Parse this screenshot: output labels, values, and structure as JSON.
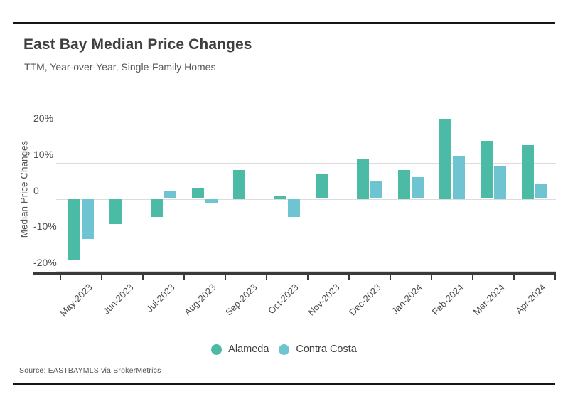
{
  "header": {
    "title": "East Bay Median Price Changes",
    "subtitle": "TTM, Year-over-Year, Single-Family Homes"
  },
  "footer": {
    "source": "Source:  EASTBAYMLS via BrokerMetrics"
  },
  "colors": {
    "alameda": "#4CBBA5",
    "contra_costa": "#6EC4D1",
    "gridline": "#DCDCDC",
    "axis": "#3A3A3A",
    "rule": "#161616",
    "title_text": "#3F3F3F",
    "tick_text": "#4F4F4F"
  },
  "chart_data": {
    "type": "bar",
    "title": "East Bay Median Price Changes",
    "subtitle": "TTM, Year-over-Year, Single-Family Homes",
    "xlabel": "",
    "ylabel": "Median Price Changes",
    "unit": "%",
    "categories": [
      "May-2023",
      "Jun-2023",
      "Jul-2023",
      "Aug-2023",
      "Sep-2023",
      "Oct-2023",
      "Nov-2023",
      "Dec-2023",
      "Jan-2024",
      "Feb-2024",
      "Mar-2024",
      "Apr-2024"
    ],
    "series": [
      {
        "name": "Alameda",
        "color": "#4CBBA5",
        "values": [
          -17,
          -7,
          -5,
          3,
          8,
          1,
          7,
          11,
          8,
          22,
          16,
          15
        ]
      },
      {
        "name": "Contra Costa",
        "color": "#6EC4D1",
        "values": [
          -11,
          0,
          2,
          -1,
          0,
          -5,
          0,
          5,
          6,
          12,
          9,
          4
        ]
      }
    ],
    "y_ticks": [
      {
        "label": "20%",
        "value": 20
      },
      {
        "label": "10%",
        "value": 10
      },
      {
        "label": "0",
        "value": 0
      },
      {
        "label": "-10%",
        "value": -10
      },
      {
        "label": "-20%",
        "value": -20
      }
    ],
    "ylim": [
      -20.5,
      23.5
    ],
    "grid": true,
    "legend_position": "bottom",
    "missing_bars_note": "Contra Costa has no bar (0%) for Jun-2023, Sep-2023, Nov-2023"
  },
  "legend": {
    "items": [
      {
        "label": "Alameda"
      },
      {
        "label": "Contra Costa"
      }
    ]
  }
}
